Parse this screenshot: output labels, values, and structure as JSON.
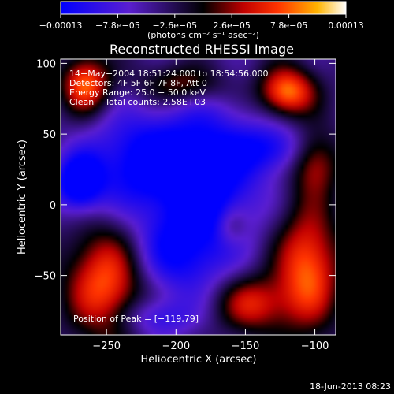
{
  "chart_data": {
    "type": "heatmap",
    "title": "Reconstructed RHESSI Image",
    "xlabel": "Heliocentric X (arcsec)",
    "ylabel": "Heliocentric Y (arcsec)",
    "xlim": [
      -283,
      -85
    ],
    "ylim": [
      -92,
      103
    ],
    "xticks": [
      -250,
      -200,
      -150,
      -100
    ],
    "xtick_labels": [
      "−250",
      "−200",
      "−150",
      "−100"
    ],
    "yticks": [
      100,
      50,
      0,
      -50
    ],
    "ytick_labels": [
      "100",
      "50",
      "0",
      "−50"
    ],
    "colorbar": {
      "range": [
        -0.00013,
        0.00013
      ],
      "ticks": [
        -0.00013,
        -7.8e-05,
        -2.6e-05,
        2.6e-05,
        7.8e-05,
        0.00013
      ],
      "tick_labels": [
        "−0.00013",
        "−7.8e−05",
        "−2.6e−05",
        "2.6e−05",
        "7.8e−05",
        "0.00013"
      ],
      "unit_label": "(photons cm⁻² s⁻¹ asec⁻²)"
    },
    "annotations": [
      "14−May−2004 18:51:24.000 to 18:54:56.000",
      "Detectors: 4F 5F 6F 7F 8F, Att 0",
      "Energy Range: 25.0 − 50.0 keV",
      "Clean    Total counts: 2.58E+03"
    ],
    "peak_label": "Position of Peak = [−119,79]",
    "peak": [
      -119,
      79
    ],
    "sources": [
      {
        "x": -120,
        "y": 80,
        "amp": 0.00013,
        "sx": 14,
        "sy": 12
      },
      {
        "x": -265,
        "y": 85,
        "amp": 0.00012,
        "sx": 12,
        "sy": 14
      },
      {
        "x": -250,
        "y": -55,
        "amp": 0.00012,
        "sx": 20,
        "sy": 28
      },
      {
        "x": -105,
        "y": -45,
        "amp": 0.00012,
        "sx": 16,
        "sy": 30
      },
      {
        "x": -145,
        "y": -70,
        "amp": 9e-05,
        "sx": 18,
        "sy": 14
      },
      {
        "x": -195,
        "y": 85,
        "amp": 7e-05,
        "sx": 22,
        "sy": 10
      },
      {
        "x": -100,
        "y": 30,
        "amp": 8e-05,
        "sx": 12,
        "sy": 16
      },
      {
        "x": -160,
        "y": -15,
        "amp": 5e-05,
        "sx": 8,
        "sy": 10
      },
      {
        "x": -225,
        "y": 30,
        "amp": -0.0001,
        "sx": 28,
        "sy": 25
      },
      {
        "x": -175,
        "y": 20,
        "amp": -0.00011,
        "sx": 25,
        "sy": 35
      },
      {
        "x": -270,
        "y": 15,
        "amp": -0.00012,
        "sx": 12,
        "sy": 14
      },
      {
        "x": -200,
        "y": -35,
        "amp": -8e-05,
        "sx": 25,
        "sy": 22
      },
      {
        "x": -130,
        "y": 40,
        "amp": -7e-05,
        "sx": 18,
        "sy": 12
      },
      {
        "x": -215,
        "y": -80,
        "amp": -6e-05,
        "sx": 20,
        "sy": 10
      }
    ]
  },
  "footer": {
    "timestamp": "18-Jun-2013 08:23"
  }
}
